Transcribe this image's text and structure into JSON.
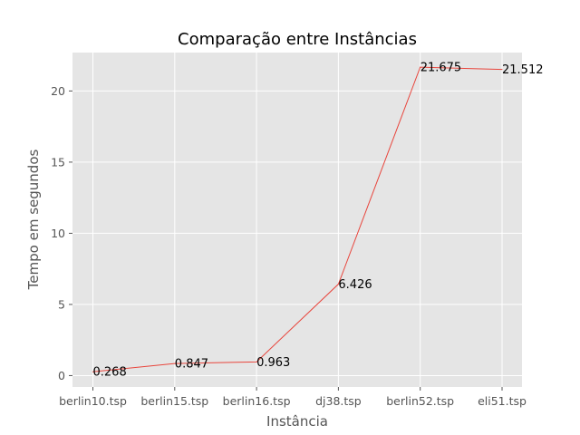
{
  "chart_data": {
    "type": "line",
    "title": "Comparação entre Instâncias",
    "xlabel": "Instância",
    "ylabel": "Tempo em segundos",
    "categories": [
      "berlin10.tsp",
      "berlin15.tsp",
      "berlin16.tsp",
      "dj38.tsp",
      "berlin52.tsp",
      "eli51.tsp"
    ],
    "values": [
      0.268,
      0.847,
      0.963,
      6.426,
      21.675,
      21.512
    ],
    "data_labels": [
      "0.268",
      "0.847",
      "0.963",
      "6.426",
      "21.675",
      "21.512"
    ],
    "yticks": [
      0,
      5,
      10,
      15,
      20
    ],
    "ylim": [
      -0.8,
      22.7
    ],
    "grid": true,
    "style": "ggplot",
    "colors": {
      "line": "#e8453c",
      "plot_background": "#e5e5e5",
      "grid": "#ffffff",
      "tick_text": "#555555"
    }
  }
}
